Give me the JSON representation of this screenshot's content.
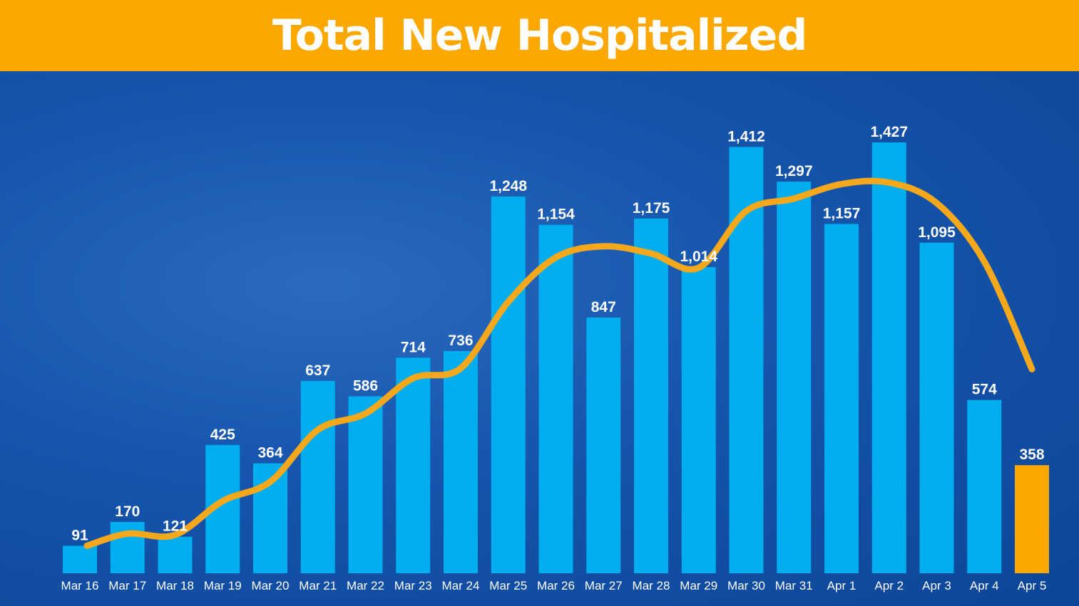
{
  "chart_data": {
    "type": "bar",
    "title": "Total New Hospitalized",
    "categories": [
      "Mar 16",
      "Mar 17",
      "Mar 18",
      "Mar 19",
      "Mar 20",
      "Mar 21",
      "Mar 22",
      "Mar 23",
      "Mar 24",
      "Mar 25",
      "Mar 26",
      "Mar 27",
      "Mar 28",
      "Mar 29",
      "Mar 30",
      "Mar 31",
      "Apr 1",
      "Apr 2",
      "Apr 3",
      "Apr 4",
      "Apr 5"
    ],
    "values": [
      91,
      170,
      121,
      425,
      364,
      637,
      586,
      714,
      736,
      1248,
      1154,
      847,
      1175,
      1014,
      1412,
      1297,
      1157,
      1427,
      1095,
      574,
      358
    ],
    "labels": [
      "91",
      "170",
      "121",
      "425",
      "364",
      "637",
      "586",
      "714",
      "736",
      "1,248",
      "1,154",
      "847",
      "1,175",
      "1,014",
      "1,412",
      "1,297",
      "1,157",
      "1,427",
      "1,095",
      "574",
      "358"
    ],
    "trend_line": {
      "type": "line",
      "smoothing": "3-day average",
      "values": [
        91,
        131,
        127,
        239,
        303,
        475,
        529,
        646,
        679,
        899,
        1046,
        1083,
        1059,
        1012,
        1200,
        1241,
        1289,
        1294,
        1226,
        1032,
        676
      ]
    },
    "ylim": [
      0,
      1427
    ],
    "grid": false,
    "colors": {
      "bar": "#00aeef",
      "highlight_bar": "#fca800",
      "line": "#f5a81c",
      "header": "#fca800",
      "background": "#1656ae"
    },
    "highlighted_category": "Apr 5"
  }
}
